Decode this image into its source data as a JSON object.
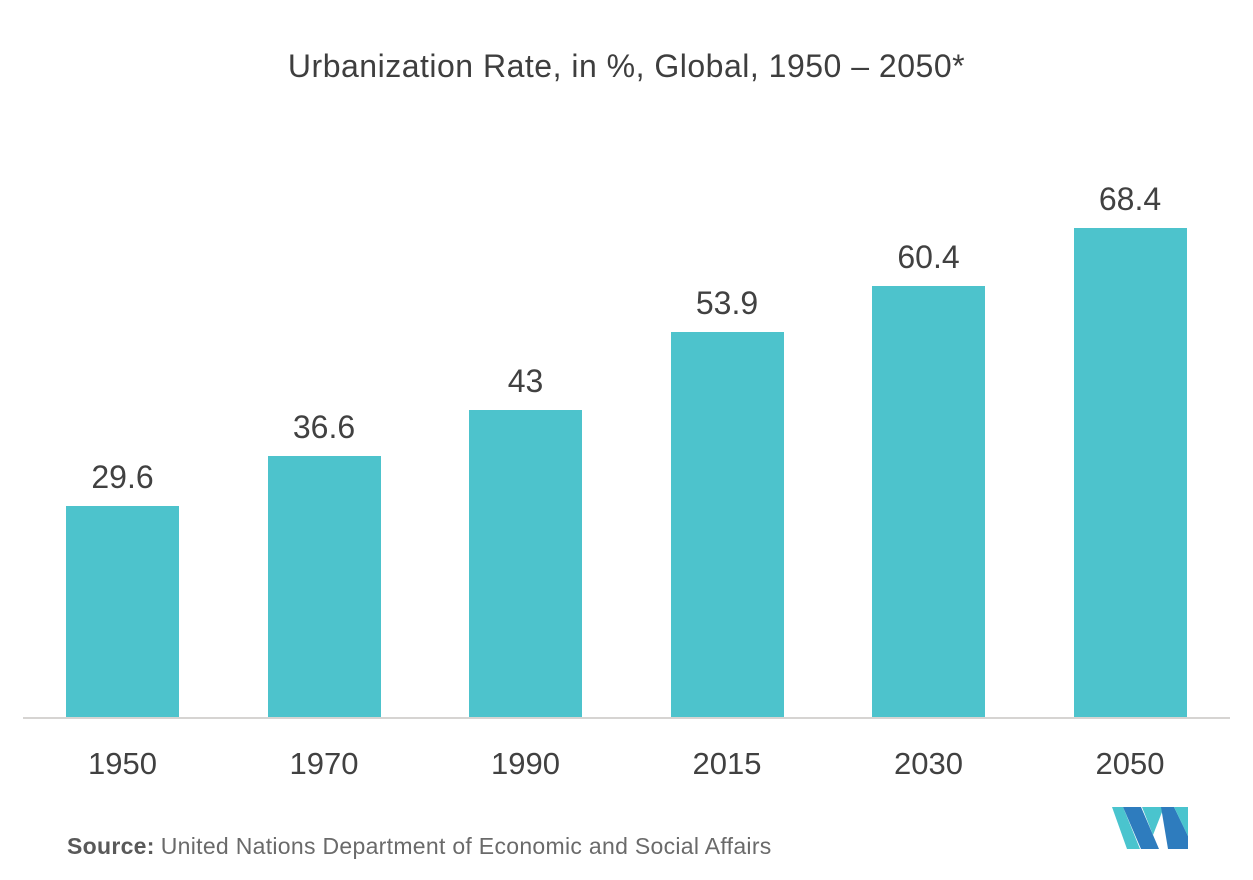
{
  "title": "Urbanization Rate, in %, Global, 1950 – 2050*",
  "source": {
    "label": "Source:",
    "text": "United Nations Department of Economic and Social Affairs"
  },
  "colors": {
    "bar": "#4dc3cc",
    "title": "#3e3e3e",
    "value_label": "#414141",
    "axis_line": "#d6d4d2",
    "source_label": "#595959",
    "source_text": "#6a6a6a",
    "logo_blue": "#2e7cbe",
    "logo_teal": "#4ac4ce"
  },
  "chart_data": {
    "type": "bar",
    "title": "Urbanization Rate, in %, Global, 1950 – 2050*",
    "categories": [
      "1950",
      "1970",
      "1990",
      "2015",
      "2030",
      "2050"
    ],
    "values": [
      29.6,
      36.6,
      43,
      53.9,
      60.4,
      68.4
    ],
    "value_labels": [
      "29.6",
      "36.6",
      "43",
      "53.9",
      "60.4",
      "68.4"
    ],
    "xlabel": "",
    "ylabel": "",
    "ylim": [
      0,
      80
    ],
    "grid": false,
    "legend": false,
    "bar_color": "#4dc3cc",
    "data_labels_position": "above-bar",
    "x_axis_line": true,
    "y_axis_visible": false
  },
  "footer": {
    "logo_name": "mordor-intelligence-logo"
  }
}
